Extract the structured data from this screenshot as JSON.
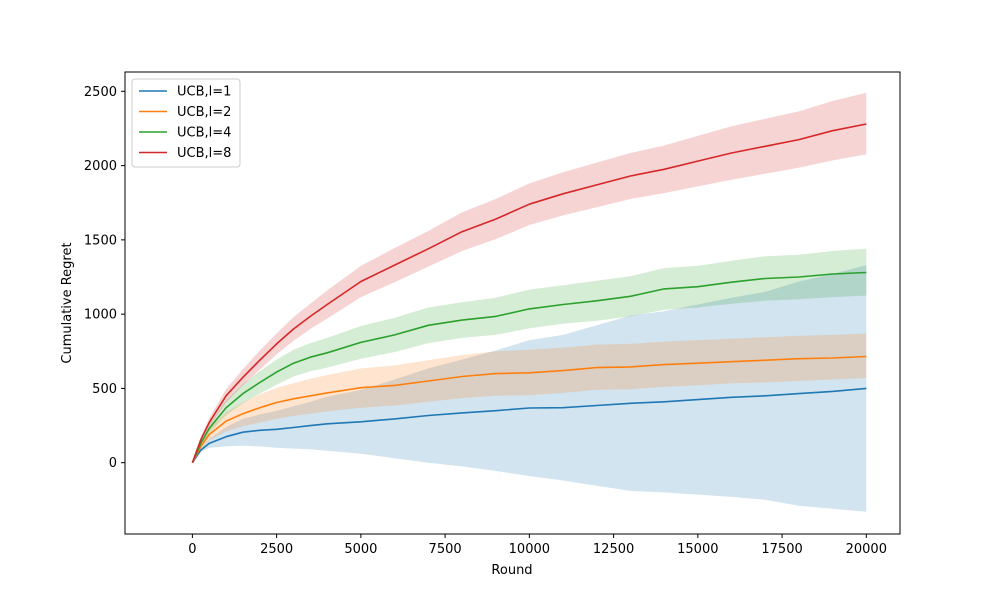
{
  "chart_data": {
    "type": "line",
    "xlabel": "Round",
    "ylabel": "Cumulative Regret",
    "xlim": [
      -2000,
      21000
    ],
    "ylim": [
      -480,
      2630
    ],
    "x_ticks": [
      0,
      2500,
      5000,
      7500,
      10000,
      12500,
      15000,
      17500,
      20000
    ],
    "y_ticks": [
      0,
      500,
      1000,
      1500,
      2000,
      2500
    ],
    "grid": false,
    "legend_position": "top-left",
    "x": [
      0,
      250,
      500,
      1000,
      1500,
      2000,
      2500,
      3000,
      3500,
      4000,
      5000,
      6000,
      7000,
      8000,
      9000,
      10000,
      11000,
      12000,
      13000,
      14000,
      15000,
      16000,
      17000,
      18000,
      19000,
      20000
    ],
    "series": [
      {
        "name": "UCB,l=1",
        "color": "#1f77b4",
        "mean": [
          0,
          85,
          130,
          175,
          205,
          218,
          225,
          237,
          250,
          262,
          275,
          295,
          318,
          335,
          350,
          368,
          370,
          385,
          400,
          410,
          425,
          440,
          450,
          465,
          480,
          500
        ],
        "lower": [
          0,
          70,
          100,
          110,
          115,
          110,
          100,
          95,
          90,
          80,
          60,
          30,
          0,
          -25,
          -55,
          -90,
          -120,
          -155,
          -190,
          -200,
          -215,
          -230,
          -250,
          -290,
          -310,
          -330
        ],
        "upper": [
          0,
          100,
          160,
          240,
          295,
          325,
          350,
          380,
          410,
          445,
          490,
          560,
          635,
          695,
          755,
          825,
          860,
          925,
          990,
          1020,
          1065,
          1110,
          1150,
          1220,
          1270,
          1330
        ]
      },
      {
        "name": "UCB,l=2",
        "color": "#ff7f0e",
        "mean": [
          0,
          110,
          190,
          280,
          330,
          370,
          405,
          430,
          450,
          470,
          505,
          520,
          550,
          580,
          600,
          605,
          620,
          640,
          645,
          660,
          670,
          680,
          690,
          700,
          705,
          715
        ],
        "lower": [
          0,
          90,
          150,
          210,
          245,
          270,
          295,
          315,
          330,
          345,
          370,
          385,
          410,
          435,
          450,
          455,
          470,
          490,
          495,
          510,
          520,
          535,
          540,
          550,
          560,
          570
        ],
        "upper": [
          0,
          130,
          230,
          340,
          405,
          460,
          505,
          535,
          565,
          590,
          635,
          655,
          690,
          725,
          750,
          760,
          775,
          795,
          800,
          815,
          825,
          835,
          845,
          855,
          860,
          870
        ]
      },
      {
        "name": "UCB,l=4",
        "color": "#2ca02c",
        "mean": [
          0,
          130,
          230,
          370,
          465,
          540,
          610,
          670,
          710,
          740,
          810,
          860,
          925,
          960,
          985,
          1035,
          1065,
          1090,
          1120,
          1170,
          1185,
          1215,
          1240,
          1250,
          1270,
          1280
        ],
        "lower": [
          0,
          115,
          200,
          320,
          400,
          465,
          525,
          580,
          615,
          640,
          700,
          745,
          805,
          840,
          860,
          905,
          935,
          955,
          985,
          1030,
          1045,
          1070,
          1090,
          1100,
          1115,
          1125
        ],
        "upper": [
          0,
          145,
          260,
          420,
          530,
          615,
          695,
          760,
          805,
          840,
          920,
          975,
          1045,
          1080,
          1110,
          1165,
          1195,
          1225,
          1255,
          1310,
          1325,
          1360,
          1390,
          1400,
          1425,
          1440
        ]
      },
      {
        "name": "UCB,l=8",
        "color": "#d62728",
        "mean": [
          0,
          155,
          270,
          450,
          575,
          690,
          800,
          900,
          985,
          1065,
          1220,
          1330,
          1440,
          1555,
          1640,
          1740,
          1810,
          1870,
          1930,
          1975,
          2030,
          2085,
          2130,
          2175,
          2235,
          2280
        ],
        "lower": [
          0,
          140,
          240,
          405,
          520,
          625,
          730,
          820,
          900,
          970,
          1115,
          1215,
          1320,
          1425,
          1505,
          1600,
          1665,
          1720,
          1775,
          1815,
          1860,
          1905,
          1945,
          1985,
          2035,
          2075
        ],
        "upper": [
          0,
          170,
          300,
          495,
          630,
          755,
          870,
          980,
          1070,
          1160,
          1325,
          1445,
          1560,
          1685,
          1775,
          1880,
          1955,
          2020,
          2085,
          2135,
          2200,
          2265,
          2315,
          2365,
          2435,
          2490
        ]
      }
    ]
  }
}
